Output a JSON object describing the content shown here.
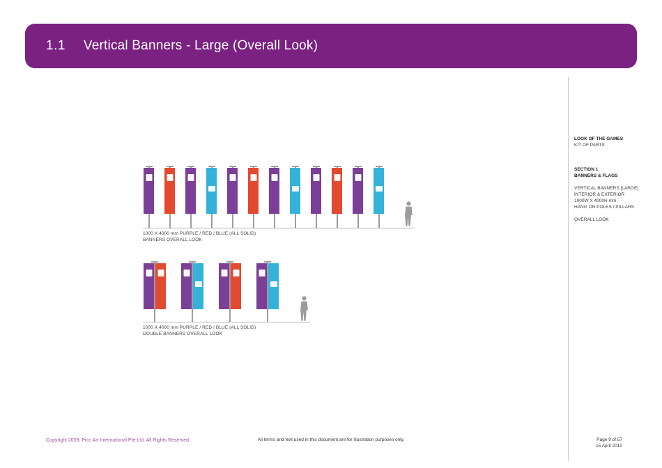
{
  "header": {
    "number": "1.1",
    "title": "Vertical Banners - Large (Overall Look)"
  },
  "sidebar": {
    "doc_title": "LOOK OF THE GAMES",
    "doc_subtitle": "KIT OF PARTS",
    "section": "SECTION 1",
    "section_name": "BANNERS & FLAGS",
    "spec_lines": [
      "VERTICAL BANNERS [LARGE]",
      "INTERIOR & EXTERIOR",
      "1000W X 4000H mm",
      "HANG ON POLES / PILLARS"
    ],
    "view": "OVERALL LOOK"
  },
  "colors": {
    "purple": "#7c3f98",
    "red": "#e2492f",
    "blue": "#35b2da",
    "header_purple": "#7a2182",
    "copyright_text": "#a4509e",
    "silhouette_gray": "#9b9b9b"
  },
  "figures": [
    {
      "groups": [
        [
          "purple"
        ],
        [
          "red"
        ],
        [
          "purple"
        ],
        [
          "blue"
        ],
        [
          "purple"
        ],
        [
          "red"
        ],
        [
          "purple"
        ],
        [
          "blue"
        ],
        [
          "purple"
        ],
        [
          "red"
        ],
        [
          "purple"
        ],
        [
          "blue"
        ]
      ],
      "caption_line1": "1000 X 4000 mm PURPLE / RED / BLUE (ALL SOLID)",
      "caption_line2": "BANNERS OVERALL LOOK"
    },
    {
      "groups": [
        [
          "purple",
          "red"
        ],
        [
          "purple",
          "blue"
        ],
        [
          "purple",
          "red"
        ],
        [
          "purple",
          "blue"
        ]
      ],
      "caption_line1": "1000 X 4000 mm PURPLE / RED / BLUE (ALL SOLID)",
      "caption_line2": "DOUBLE BANNERS OVERALL LOOK"
    }
  ],
  "footer": {
    "copyright": "Copyright 2009, Pico Art International Pte Ltd. All Rights Reserved.",
    "disclaimer": "All terms and text used in this document are for illustration purposes only.",
    "page": "Page 9 of 57",
    "date": "15 April 2010"
  }
}
